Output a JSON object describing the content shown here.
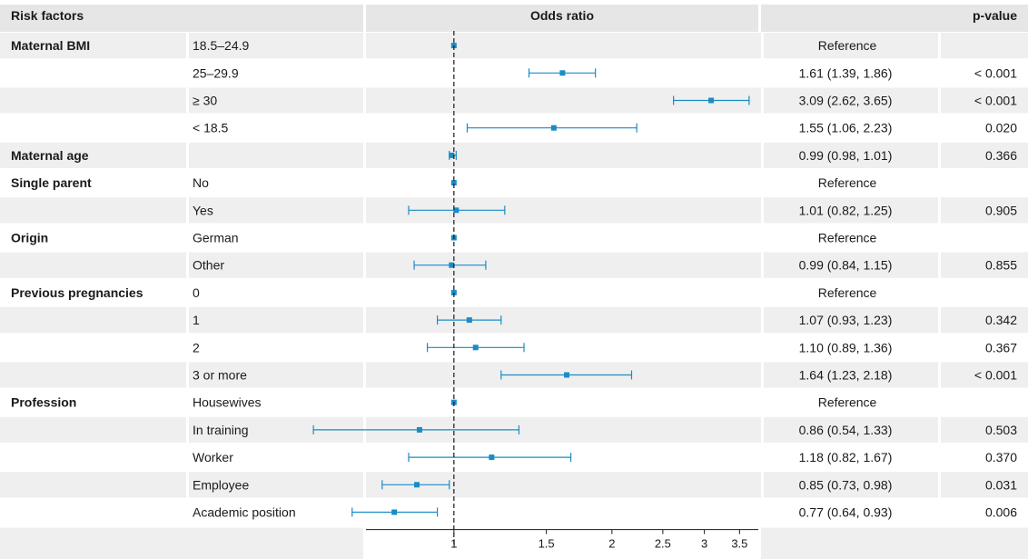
{
  "headers": {
    "risk_factors": "Risk factors",
    "odds_ratio": "Odds ratio",
    "p_value": "p-value"
  },
  "chart_data": {
    "type": "forest",
    "xlabel": "Odds ratio",
    "x_scale": "log",
    "xlim": [
      0.68,
      3.8
    ],
    "reference_line": 1,
    "x_ticks": [
      1,
      1.5,
      2,
      2.5,
      3,
      3.5
    ],
    "x_tick_labels": [
      "1",
      "1.5",
      "2",
      "2.5",
      "3",
      "3.5"
    ],
    "marker_color": "#1a8cc4",
    "rows": [
      {
        "group": "Maternal BMI",
        "level": "18.5–24.9",
        "or": 1,
        "lo": null,
        "hi": null,
        "ci_text": "Reference",
        "p": ""
      },
      {
        "group": "",
        "level": "25–29.9",
        "or": 1.61,
        "lo": 1.39,
        "hi": 1.86,
        "ci_text": "1.61 (1.39, 1.86)",
        "p": "< 0.001"
      },
      {
        "group": "",
        "level": "≥ 30",
        "or": 3.09,
        "lo": 2.62,
        "hi": 3.65,
        "ci_text": "3.09 (2.62, 3.65)",
        "p": "< 0.001"
      },
      {
        "group": "",
        "level": "< 18.5",
        "or": 1.55,
        "lo": 1.06,
        "hi": 2.23,
        "ci_text": "1.55 (1.06, 2.23)",
        "p": "0.020"
      },
      {
        "group": "Maternal age",
        "level": "",
        "or": 0.99,
        "lo": 0.98,
        "hi": 1.01,
        "ci_text": "0.99 (0.98, 1.01)",
        "p": "0.366"
      },
      {
        "group": "Single parent",
        "level": "No",
        "or": 1,
        "lo": null,
        "hi": null,
        "ci_text": "Reference",
        "p": ""
      },
      {
        "group": "",
        "level": "Yes",
        "or": 1.01,
        "lo": 0.82,
        "hi": 1.25,
        "ci_text": "1.01 (0.82, 1.25)",
        "p": "0.905"
      },
      {
        "group": "Origin",
        "level": "German",
        "or": 1,
        "lo": null,
        "hi": null,
        "ci_text": "Reference",
        "p": ""
      },
      {
        "group": "",
        "level": "Other",
        "or": 0.99,
        "lo": 0.84,
        "hi": 1.15,
        "ci_text": "0.99 (0.84, 1.15)",
        "p": "0.855"
      },
      {
        "group": "Previous pregnancies",
        "level": "0",
        "or": 1,
        "lo": null,
        "hi": null,
        "ci_text": "Reference",
        "p": ""
      },
      {
        "group": "",
        "level": "1",
        "or": 1.07,
        "lo": 0.93,
        "hi": 1.23,
        "ci_text": "1.07 (0.93, 1.23)",
        "p": "0.342"
      },
      {
        "group": "",
        "level": "2",
        "or": 1.1,
        "lo": 0.89,
        "hi": 1.36,
        "ci_text": "1.10 (0.89, 1.36)",
        "p": "0.367"
      },
      {
        "group": "",
        "level": "3 or more",
        "or": 1.64,
        "lo": 1.23,
        "hi": 2.18,
        "ci_text": "1.64 (1.23, 2.18)",
        "p": "< 0.001"
      },
      {
        "group": "Profession",
        "level": "Housewives",
        "or": 1,
        "lo": null,
        "hi": null,
        "ci_text": "Reference",
        "p": ""
      },
      {
        "group": "",
        "level": "In training",
        "or": 0.86,
        "lo": 0.54,
        "hi": 1.33,
        "ci_text": "0.86 (0.54, 1.33)",
        "p": "0.503"
      },
      {
        "group": "",
        "level": "Worker",
        "or": 1.18,
        "lo": 0.82,
        "hi": 1.67,
        "ci_text": "1.18 (0.82, 1.67)",
        "p": "0.370"
      },
      {
        "group": "",
        "level": "Employee",
        "or": 0.85,
        "lo": 0.73,
        "hi": 0.98,
        "ci_text": "0.85 (0.73, 0.98)",
        "p": "0.031"
      },
      {
        "group": "",
        "level": "Academic position",
        "or": 0.77,
        "lo": 0.64,
        "hi": 0.93,
        "ci_text": "0.77 (0.64, 0.93)",
        "p": "0.006"
      }
    ]
  }
}
